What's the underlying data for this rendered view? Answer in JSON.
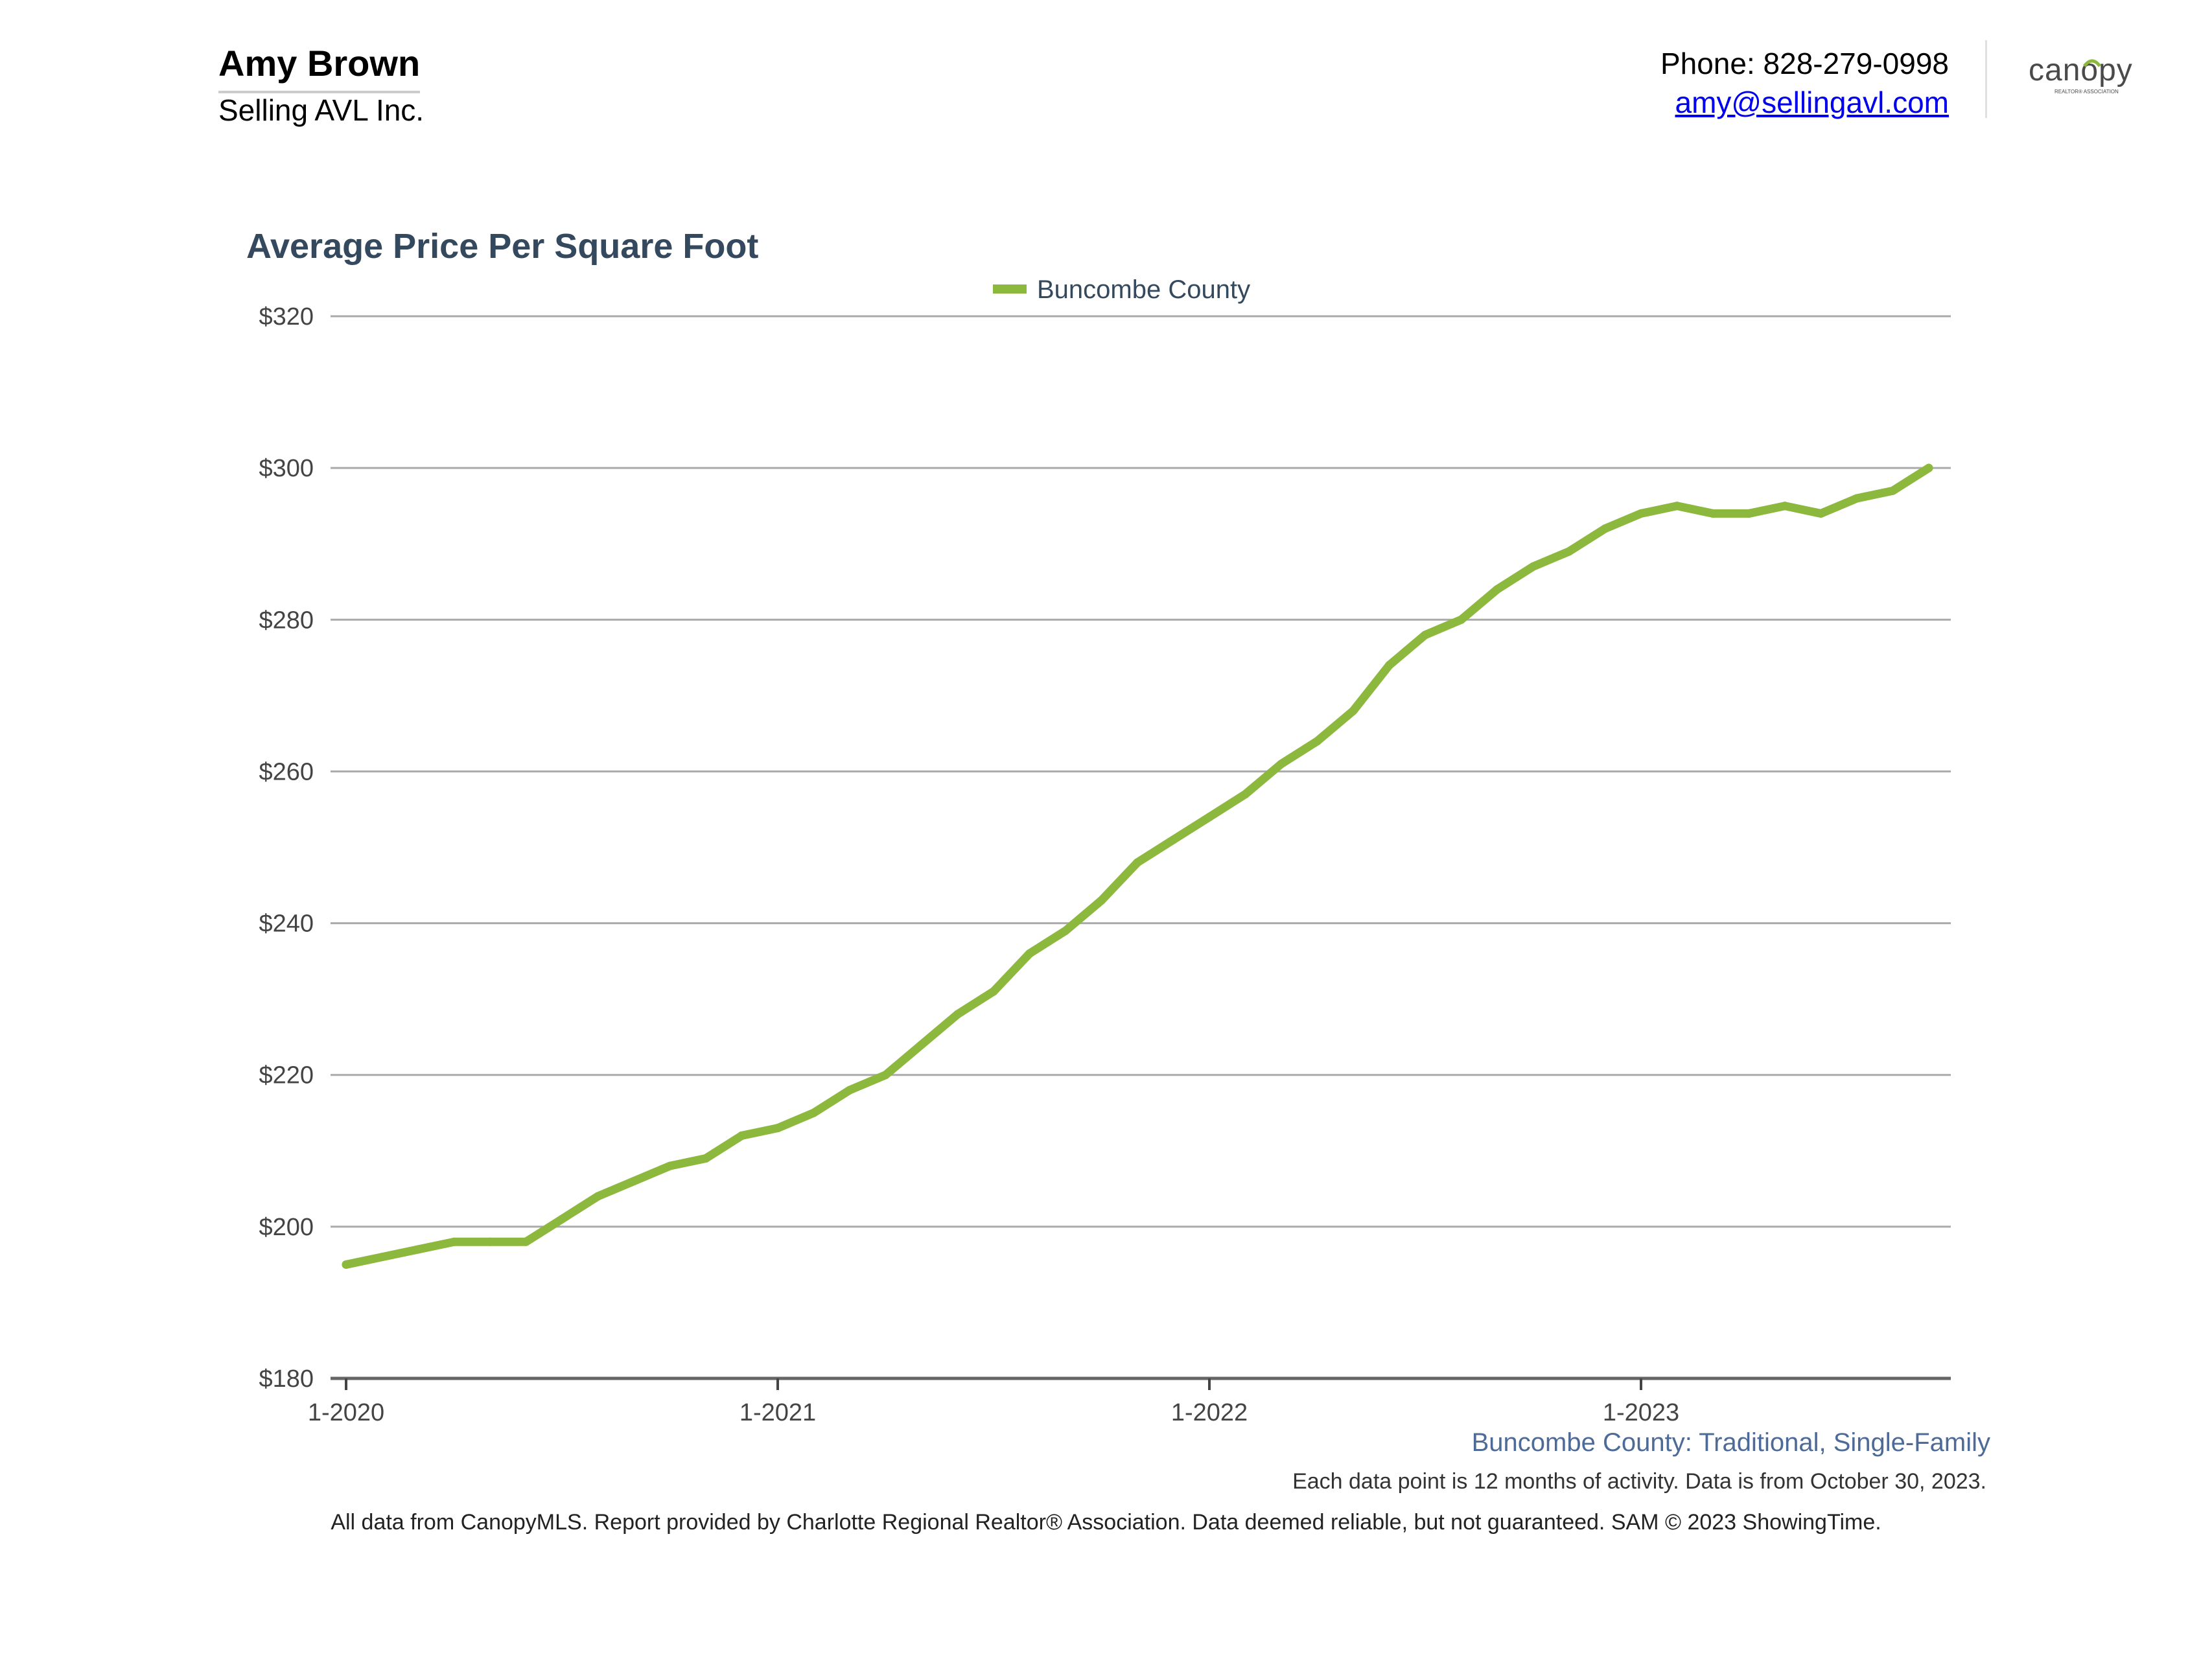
{
  "header": {
    "agent_name": "Amy Brown",
    "company": "Selling AVL Inc.",
    "phone_label": "Phone: 828-279-0998",
    "email": "amy@sellingavl.com",
    "logo": {
      "icon": "canopy-logo",
      "text": "canopy",
      "subtext": "REALTOR® ASSOCIATION",
      "color": "#4a4a4a",
      "accent_color": "#8cb83e"
    }
  },
  "chart_data": {
    "type": "line",
    "title": "Average Price Per Square Foot",
    "legend_position": "top-center",
    "grid": true,
    "series": [
      {
        "name": "Buncombe County",
        "color": "#8cb83e",
        "x": [
          "2020-01",
          "2020-02",
          "2020-03",
          "2020-04",
          "2020-05",
          "2020-06",
          "2020-07",
          "2020-08",
          "2020-09",
          "2020-10",
          "2020-11",
          "2020-12",
          "2021-01",
          "2021-02",
          "2021-03",
          "2021-04",
          "2021-05",
          "2021-06",
          "2021-07",
          "2021-08",
          "2021-09",
          "2021-10",
          "2021-11",
          "2021-12",
          "2022-01",
          "2022-02",
          "2022-03",
          "2022-04",
          "2022-05",
          "2022-06",
          "2022-07",
          "2022-08",
          "2022-09",
          "2022-10",
          "2022-11",
          "2022-12",
          "2023-01",
          "2023-02",
          "2023-03",
          "2023-04",
          "2023-05",
          "2023-06",
          "2023-07",
          "2023-08",
          "2023-09"
        ],
        "values": [
          195,
          196,
          197,
          198,
          198,
          198,
          201,
          204,
          206,
          208,
          209,
          212,
          213,
          215,
          218,
          220,
          224,
          228,
          231,
          236,
          239,
          243,
          248,
          251,
          254,
          257,
          261,
          264,
          268,
          274,
          278,
          280,
          284,
          287,
          289,
          292,
          294,
          295,
          294,
          294,
          295,
          294,
          296,
          297,
          300
        ]
      }
    ],
    "x_tick_labels": [
      "1-2020",
      "1-2021",
      "1-2022",
      "1-2023"
    ],
    "y_tick_labels": [
      "$180",
      "$200",
      "$220",
      "$240",
      "$260",
      "$280",
      "$300",
      "$320"
    ],
    "ylim": [
      180,
      320
    ],
    "y_ticks": [
      180,
      200,
      220,
      240,
      260,
      280,
      300,
      320
    ]
  },
  "captions": {
    "series_caption": "Buncombe County: Traditional, Single-Family",
    "data_note": "Each data point is 12 months of activity. Data is from October 30, 2023.",
    "footer": "All data from CanopyMLS. Report provided by Charlotte Regional Realtor® Association. Data deemed reliable, but not guaranteed. SAM © 2023 ShowingTime."
  }
}
